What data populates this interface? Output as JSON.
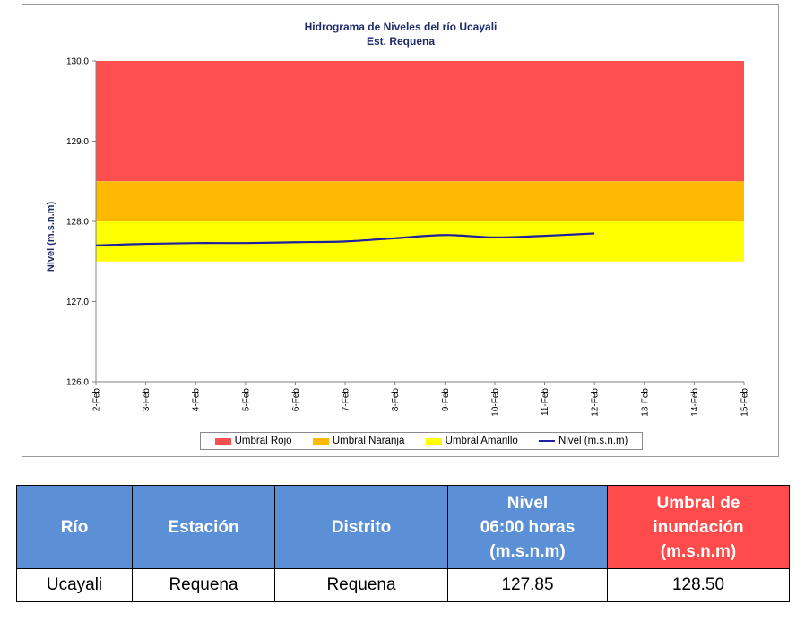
{
  "chart_data": {
    "type": "line",
    "title": "Hidrograma de Niveles del río Ucayali",
    "subtitle": "Est. Requena",
    "ylabel": "Nivel (m.s.n.m)",
    "ylim": [
      126.0,
      130.0
    ],
    "yticks": [
      "126.0",
      "127.0",
      "128.0",
      "129.0",
      "130.0"
    ],
    "x_categories": [
      "2-Feb",
      "3-Feb",
      "4-Feb",
      "5-Feb",
      "6-Feb",
      "7-Feb",
      "8-Feb",
      "9-Feb",
      "10-Feb",
      "11-Feb",
      "12-Feb",
      "13-Feb",
      "14-Feb",
      "15-Feb"
    ],
    "bands": [
      {
        "name": "Umbral Rojo",
        "from": 128.5,
        "to": 130.0,
        "color": "#ff4f4f"
      },
      {
        "name": "Umbral Naranja",
        "from": 128.0,
        "to": 128.5,
        "color": "#ffb900"
      },
      {
        "name": "Umbral Amarillo",
        "from": 127.5,
        "to": 128.0,
        "color": "#ffff00"
      }
    ],
    "series": [
      {
        "name": "Nivel (m.s.n.m)",
        "color": "#1f1fa0",
        "x": [
          0,
          1,
          2,
          3,
          4,
          5,
          6,
          7,
          8,
          9,
          10
        ],
        "values": [
          127.7,
          127.72,
          127.73,
          127.73,
          127.74,
          127.75,
          127.79,
          127.83,
          127.8,
          127.82,
          127.85
        ]
      }
    ],
    "legend_position": "bottom"
  },
  "table": {
    "headers": {
      "rio": "Río",
      "estacion": "Estación",
      "distrito": "Distrito",
      "nivel_lines": [
        "Nivel",
        "06:00 horas",
        "(m.s.n.m)"
      ],
      "umbral_lines": [
        "Umbral de",
        "inundación",
        "(m.s.n.m)"
      ]
    },
    "row": {
      "rio": "Ucayali",
      "estacion": "Requena",
      "distrito": "Requena",
      "nivel": "127.85",
      "umbral": "128.50"
    }
  }
}
